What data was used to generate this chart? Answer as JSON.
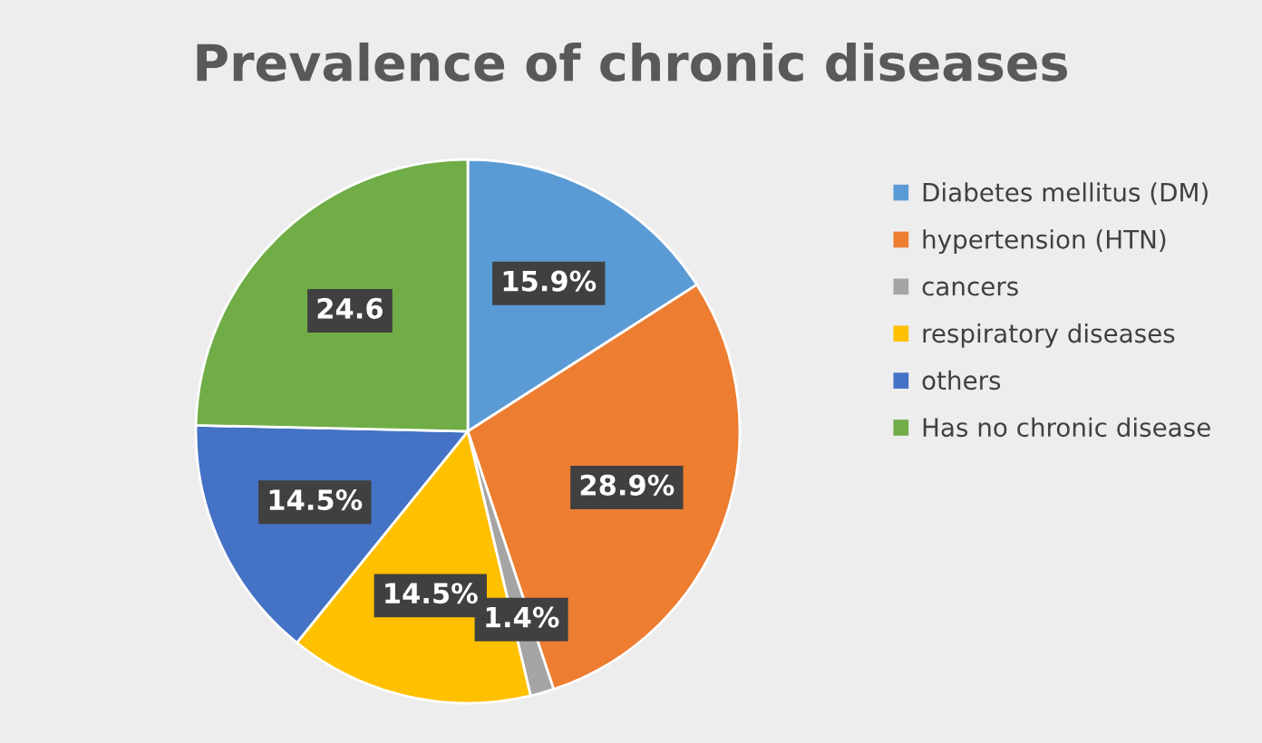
{
  "chart_data": {
    "type": "pie",
    "title": "Prevalence of chronic diseases",
    "categories": [
      "Diabetes mellitus (DM)",
      "hypertension (HTN)",
      "cancers",
      "respiratory diseases",
      "others",
      "Has no chronic disease"
    ],
    "values": [
      15.9,
      28.9,
      1.4,
      14.5,
      14.5,
      24.6
    ],
    "value_labels": [
      "15.9%",
      "28.9%",
      "1.4%",
      "14.5%",
      "14.5%",
      "24.6"
    ],
    "colors": [
      "#5b9bd5",
      "#ed7d31",
      "#a5a5a5",
      "#ffc000",
      "#4472c4",
      "#70ad47"
    ],
    "legend": "right"
  }
}
